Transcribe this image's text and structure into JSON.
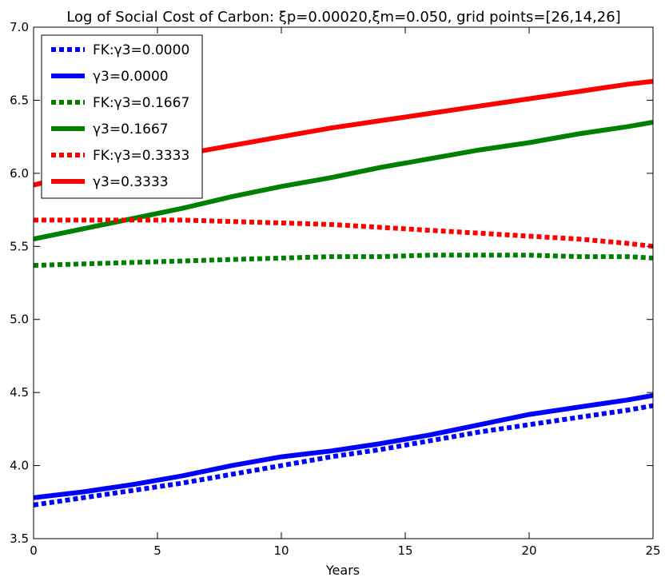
{
  "chart_data": {
    "type": "line",
    "title": "Log of Social Cost of Carbon: ξp=0.00020,ξm=0.050, grid points=[26,14,26]",
    "xlabel": "Years",
    "ylabel": "",
    "xlim": [
      0,
      25
    ],
    "ylim": [
      3.5,
      7.0
    ],
    "xticks": [
      "0",
      "5",
      "10",
      "15",
      "20",
      "25"
    ],
    "yticks": [
      "3.5",
      "4.0",
      "4.5",
      "5.0",
      "5.5",
      "6.0",
      "6.5",
      "7.0"
    ],
    "grid": false,
    "legend_position": "top-left",
    "x": [
      0,
      2,
      4,
      6,
      8,
      10,
      12,
      14,
      16,
      18,
      20,
      22,
      24,
      25
    ],
    "series": [
      {
        "name": "FK:γ3=0.0000",
        "color": "#0000ff",
        "style": "dotted",
        "values": [
          3.73,
          3.78,
          3.83,
          3.88,
          3.94,
          4.0,
          4.06,
          4.11,
          4.17,
          4.23,
          4.28,
          4.33,
          4.38,
          4.41
        ]
      },
      {
        "name": "γ3=0.0000",
        "color": "#0000ff",
        "style": "solid",
        "values": [
          3.78,
          3.82,
          3.87,
          3.93,
          4.0,
          4.06,
          4.1,
          4.15,
          4.21,
          4.28,
          4.35,
          4.4,
          4.45,
          4.48
        ]
      },
      {
        "name": "FK:γ3=0.1667",
        "color": "#008000",
        "style": "dotted",
        "values": [
          5.37,
          5.38,
          5.39,
          5.4,
          5.41,
          5.42,
          5.43,
          5.43,
          5.44,
          5.44,
          5.44,
          5.43,
          5.43,
          5.42
        ]
      },
      {
        "name": "γ3=0.1667",
        "color": "#008000",
        "style": "solid",
        "values": [
          5.55,
          5.62,
          5.69,
          5.76,
          5.84,
          5.91,
          5.97,
          6.04,
          6.1,
          6.16,
          6.21,
          6.27,
          6.32,
          6.35
        ]
      },
      {
        "name": "FK:γ3=0.3333",
        "color": "#ff0000",
        "style": "dotted",
        "values": [
          5.68,
          5.68,
          5.68,
          5.68,
          5.67,
          5.66,
          5.65,
          5.63,
          5.61,
          5.59,
          5.57,
          5.55,
          5.52,
          5.5
        ]
      },
      {
        "name": "γ3=0.3333",
        "color": "#ff0000",
        "style": "solid",
        "values": [
          5.92,
          6.0,
          6.07,
          6.13,
          6.19,
          6.25,
          6.31,
          6.36,
          6.41,
          6.46,
          6.51,
          6.56,
          6.61,
          6.63
        ]
      }
    ]
  }
}
